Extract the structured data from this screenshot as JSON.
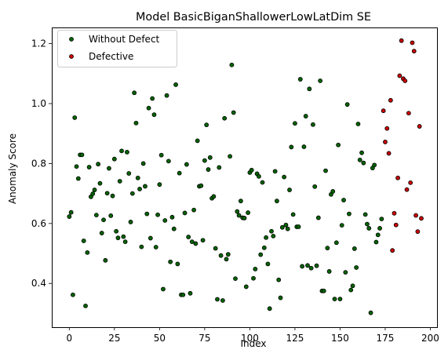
{
  "chart_data": {
    "type": "scatter",
    "title": "Model BasicBiganShallowerLowLatDim SE",
    "xlabel": "Index",
    "ylabel": "Anomaly Score",
    "xlim": [
      -9.7,
      203.7
    ],
    "ylim": [
      0.254,
      1.254
    ],
    "x_ticks": [
      0,
      25,
      50,
      75,
      100,
      125,
      150,
      175,
      200
    ],
    "x_tick_labels": [
      "0",
      "25",
      "50",
      "75",
      "100",
      "125",
      "150",
      "175",
      "200"
    ],
    "y_ticks": [
      0.4,
      0.6,
      0.8,
      1.0,
      1.2
    ],
    "y_tick_labels": [
      "0.4",
      "0.6",
      "0.8",
      "1.0",
      "1.2"
    ],
    "grid": false,
    "legend_position": "upper-left",
    "series": [
      {
        "name": "Without Defect",
        "color": "#006400",
        "points": [
          [
            0,
            0.623
          ],
          [
            1,
            0.637
          ],
          [
            2,
            0.362
          ],
          [
            3,
            0.953
          ],
          [
            4,
            0.79
          ],
          [
            5,
            0.75
          ],
          [
            6,
            0.829
          ],
          [
            7,
            0.829
          ],
          [
            8,
            0.542
          ],
          [
            9,
            0.325
          ],
          [
            10,
            0.503
          ],
          [
            11,
            0.788
          ],
          [
            12,
            0.689
          ],
          [
            13,
            0.699
          ],
          [
            14,
            0.712
          ],
          [
            15,
            0.628
          ],
          [
            16,
            0.798
          ],
          [
            17,
            0.734
          ],
          [
            18,
            0.568
          ],
          [
            19,
            0.612
          ],
          [
            20,
            0.477
          ],
          [
            21,
            0.701
          ],
          [
            22,
            0.784
          ],
          [
            23,
            0.626
          ],
          [
            24,
            0.692
          ],
          [
            25,
            0.815
          ],
          [
            26,
            0.574
          ],
          [
            27,
            0.552
          ],
          [
            28,
            0.741
          ],
          [
            29,
            0.842
          ],
          [
            30,
            0.556
          ],
          [
            31,
            0.539
          ],
          [
            32,
            0.838
          ],
          [
            33,
            0.767
          ],
          [
            34,
            0.605
          ],
          [
            35,
            0.7
          ],
          [
            36,
            1.036
          ],
          [
            37,
            0.935
          ],
          [
            38,
            0.752
          ],
          [
            39,
            0.715
          ],
          [
            40,
            0.522
          ],
          [
            41,
            0.8
          ],
          [
            42,
            0.724
          ],
          [
            43,
            0.632
          ],
          [
            44,
            0.985
          ],
          [
            45,
            0.551
          ],
          [
            46,
            1.017
          ],
          [
            47,
            0.963
          ],
          [
            48,
            0.521
          ],
          [
            49,
            0.629
          ],
          [
            50,
            0.73
          ],
          [
            51,
            0.828
          ],
          [
            52,
            0.381
          ],
          [
            53,
            0.61
          ],
          [
            54,
            1.027
          ],
          [
            55,
            0.808
          ],
          [
            56,
            0.472
          ],
          [
            57,
            0.621
          ],
          [
            58,
            0.582
          ],
          [
            59,
            1.063
          ],
          [
            60,
            0.465
          ],
          [
            61,
            0.768
          ],
          [
            62,
            0.362
          ],
          [
            63,
            0.362
          ],
          [
            64,
            0.635
          ],
          [
            65,
            0.797
          ],
          [
            66,
            0.555
          ],
          [
            67,
            0.367
          ],
          [
            68,
            0.539
          ],
          [
            69,
            0.645
          ],
          [
            70,
            0.533
          ],
          [
            71,
            0.876
          ],
          [
            72,
            0.724
          ],
          [
            73,
            0.726
          ],
          [
            74,
            0.544
          ],
          [
            75,
            0.81
          ],
          [
            76,
            0.929
          ],
          [
            77,
            0.78
          ],
          [
            78,
            0.82
          ],
          [
            79,
            0.684
          ],
          [
            80,
            0.69
          ],
          [
            81,
            0.517
          ],
          [
            82,
            0.347
          ],
          [
            83,
            0.787
          ],
          [
            84,
            0.493
          ],
          [
            85,
            0.343
          ],
          [
            86,
            0.951
          ],
          [
            87,
            0.481
          ],
          [
            88,
            0.497
          ],
          [
            89,
            0.824
          ],
          [
            90,
            1.129
          ],
          [
            91,
            0.97
          ],
          [
            92,
            0.416
          ],
          [
            93,
            0.64
          ],
          [
            94,
            0.627
          ],
          [
            95,
            0.675
          ],
          [
            96,
            0.619
          ],
          [
            97,
            0.618
          ],
          [
            98,
            0.389
          ],
          [
            99,
            0.636
          ],
          [
            100,
            0.77
          ],
          [
            101,
            0.778
          ],
          [
            102,
            0.417
          ],
          [
            103,
            0.448
          ],
          [
            104,
            0.766
          ],
          [
            105,
            0.757
          ],
          [
            106,
            0.496
          ],
          [
            107,
            0.737
          ],
          [
            108,
            0.519
          ],
          [
            109,
            0.553
          ],
          [
            110,
            0.465
          ],
          [
            111,
            0.316
          ],
          [
            112,
            0.574
          ],
          [
            113,
            0.558
          ],
          [
            114,
            0.774
          ],
          [
            115,
            0.675
          ],
          [
            116,
            0.412
          ],
          [
            117,
            0.352
          ],
          [
            118,
            0.587
          ],
          [
            119,
            0.755
          ],
          [
            120,
            0.595
          ],
          [
            121,
            0.582
          ],
          [
            122,
            0.712
          ],
          [
            123,
            0.855
          ],
          [
            124,
            0.63
          ],
          [
            125,
            0.934
          ],
          [
            126,
            0.589
          ],
          [
            127,
            0.589
          ],
          [
            128,
            1.081
          ],
          [
            129,
            0.457
          ],
          [
            130,
            0.856
          ],
          [
            131,
            0.958
          ],
          [
            132,
            0.46
          ],
          [
            133,
            1.049
          ],
          [
            134,
            0.451
          ],
          [
            135,
            0.93
          ],
          [
            136,
            0.723
          ],
          [
            137,
            0.459
          ],
          [
            138,
            0.619
          ],
          [
            139,
            1.076
          ],
          [
            140,
            0.375
          ],
          [
            141,
            0.375
          ],
          [
            142,
            0.776
          ],
          [
            143,
            0.518
          ],
          [
            144,
            0.44
          ],
          [
            145,
            0.697
          ],
          [
            146,
            0.707
          ],
          [
            147,
            0.348
          ],
          [
            148,
            0.536
          ],
          [
            149,
            0.862
          ],
          [
            150,
            0.348
          ],
          [
            151,
            0.594
          ],
          [
            152,
            0.678
          ],
          [
            153,
            0.437
          ],
          [
            154,
            0.997
          ],
          [
            155,
            0.632
          ],
          [
            156,
            0.378
          ],
          [
            157,
            0.392
          ],
          [
            158,
            0.516
          ],
          [
            159,
            0.453
          ],
          [
            160,
            0.932
          ],
          [
            161,
            0.812
          ],
          [
            162,
            0.836
          ],
          [
            163,
            0.802
          ],
          [
            164,
            0.63
          ],
          [
            165,
            0.598
          ],
          [
            166,
            0.584
          ],
          [
            167,
            0.302
          ],
          [
            168,
            0.785
          ],
          [
            169,
            0.795
          ],
          [
            170,
            0.538
          ],
          [
            171,
            0.562
          ],
          [
            172,
            0.584
          ],
          [
            173,
            0.615
          ]
        ]
      },
      {
        "name": "Defective",
        "color": "#cc0000",
        "points": [
          [
            174,
            0.976
          ],
          [
            175,
            0.872
          ],
          [
            176,
            0.917
          ],
          [
            177,
            0.834
          ],
          [
            178,
            1.011
          ],
          [
            179,
            0.51
          ],
          [
            180,
            0.634
          ],
          [
            181,
            0.595
          ],
          [
            182,
            0.752
          ],
          [
            183,
            1.093
          ],
          [
            184,
            1.21
          ],
          [
            185,
            1.083
          ],
          [
            186,
            1.076
          ],
          [
            187,
            0.713
          ],
          [
            188,
            0.968
          ],
          [
            189,
            0.736
          ],
          [
            190,
            1.203
          ],
          [
            191,
            1.175
          ],
          [
            192,
            0.627
          ],
          [
            193,
            0.573
          ],
          [
            194,
            0.924
          ],
          [
            195,
            0.617
          ]
        ]
      }
    ]
  }
}
